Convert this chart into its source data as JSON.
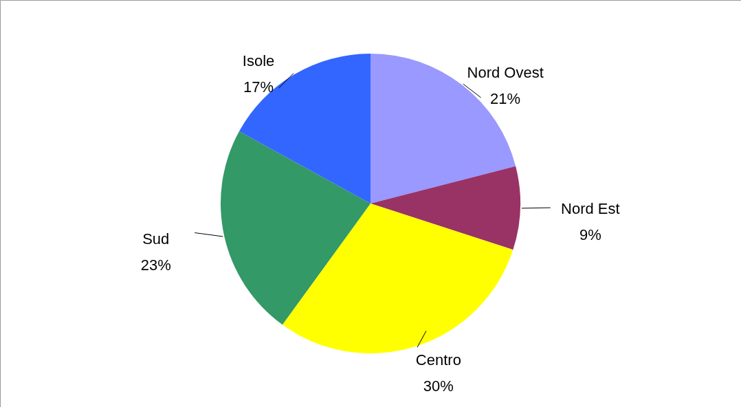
{
  "chart_data": {
    "type": "pie",
    "categories": [
      "Nord Ovest",
      "Nord Est",
      "Centro",
      "Sud",
      "Isole"
    ],
    "values": [
      21,
      9,
      30,
      23,
      17
    ],
    "value_labels": [
      "21%",
      "9%",
      "30%",
      "23%",
      "17%"
    ],
    "colors": [
      "#9999ff",
      "#993366",
      "#ffff00",
      "#339966",
      "#3366ff"
    ]
  }
}
